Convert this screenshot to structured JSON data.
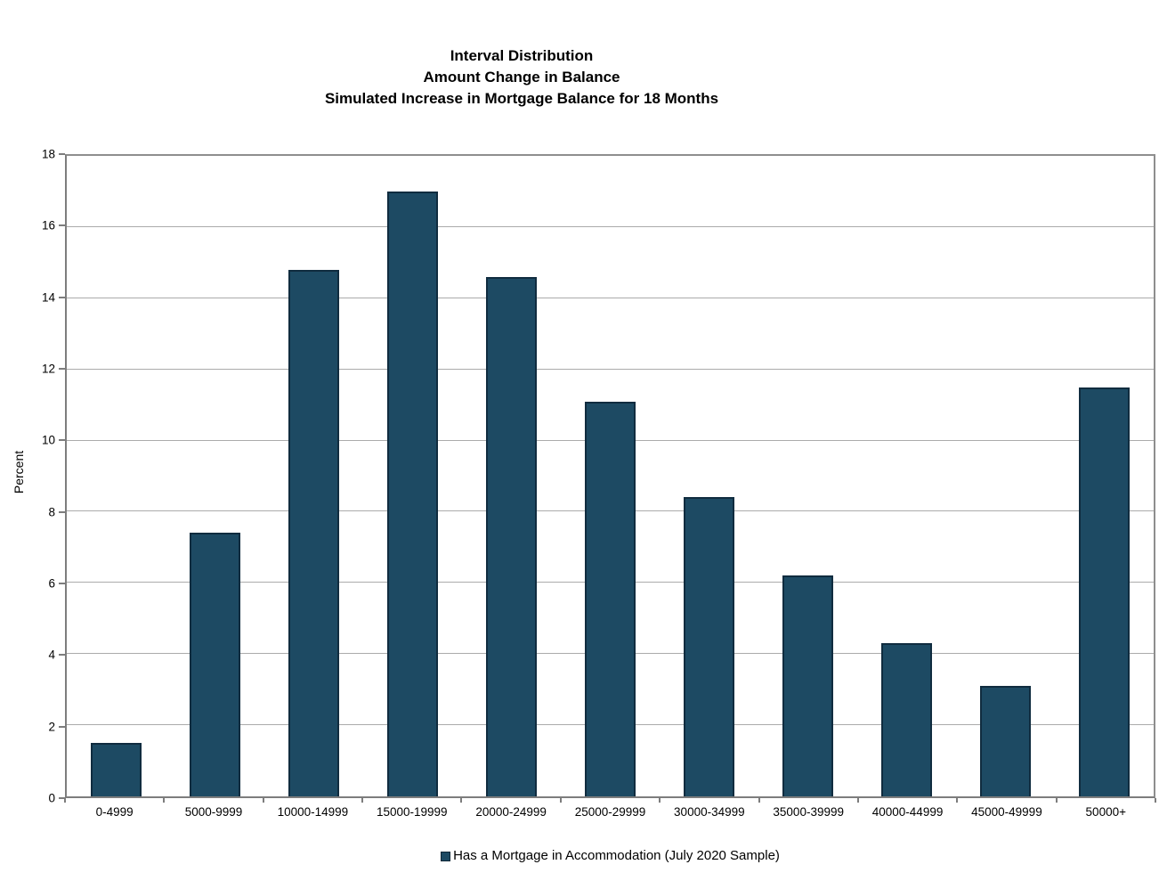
{
  "title": {
    "lines": [
      "Interval Distribution",
      "Amount Change in Balance",
      "Simulated Increase in Mortgage Balance for 18 Months"
    ]
  },
  "chart_data": {
    "type": "bar",
    "title_lines": [
      "Interval Distribution",
      "Amount Change in Balance",
      "Simulated Increase in Mortgage Balance for 18 Months"
    ],
    "categories": [
      "0-4999",
      "5000-9999",
      "10000-14999",
      "15000-19999",
      "20000-24999",
      "25000-29999",
      "30000-34999",
      "35000-39999",
      "40000-44999",
      "45000-49999",
      "50000+"
    ],
    "series": [
      {
        "name": "Has a Mortgage in Accommodation (July 2020 Sample)",
        "values": [
          1.5,
          7.4,
          14.8,
          17.0,
          14.6,
          11.1,
          8.4,
          6.2,
          4.3,
          3.1,
          11.5
        ]
      }
    ],
    "xlabel": "",
    "ylabel": "Percent",
    "ylim": [
      0,
      18
    ],
    "yticks": [
      0,
      2,
      4,
      6,
      8,
      10,
      12,
      14,
      16,
      18
    ],
    "grid": true,
    "legend_position": "bottom",
    "colors": {
      "bar_fill": "#1d4a63",
      "bar_border": "#102c3f",
      "gridline": "#ababab",
      "axis": "#7d7d7d",
      "text": "#000000"
    }
  }
}
